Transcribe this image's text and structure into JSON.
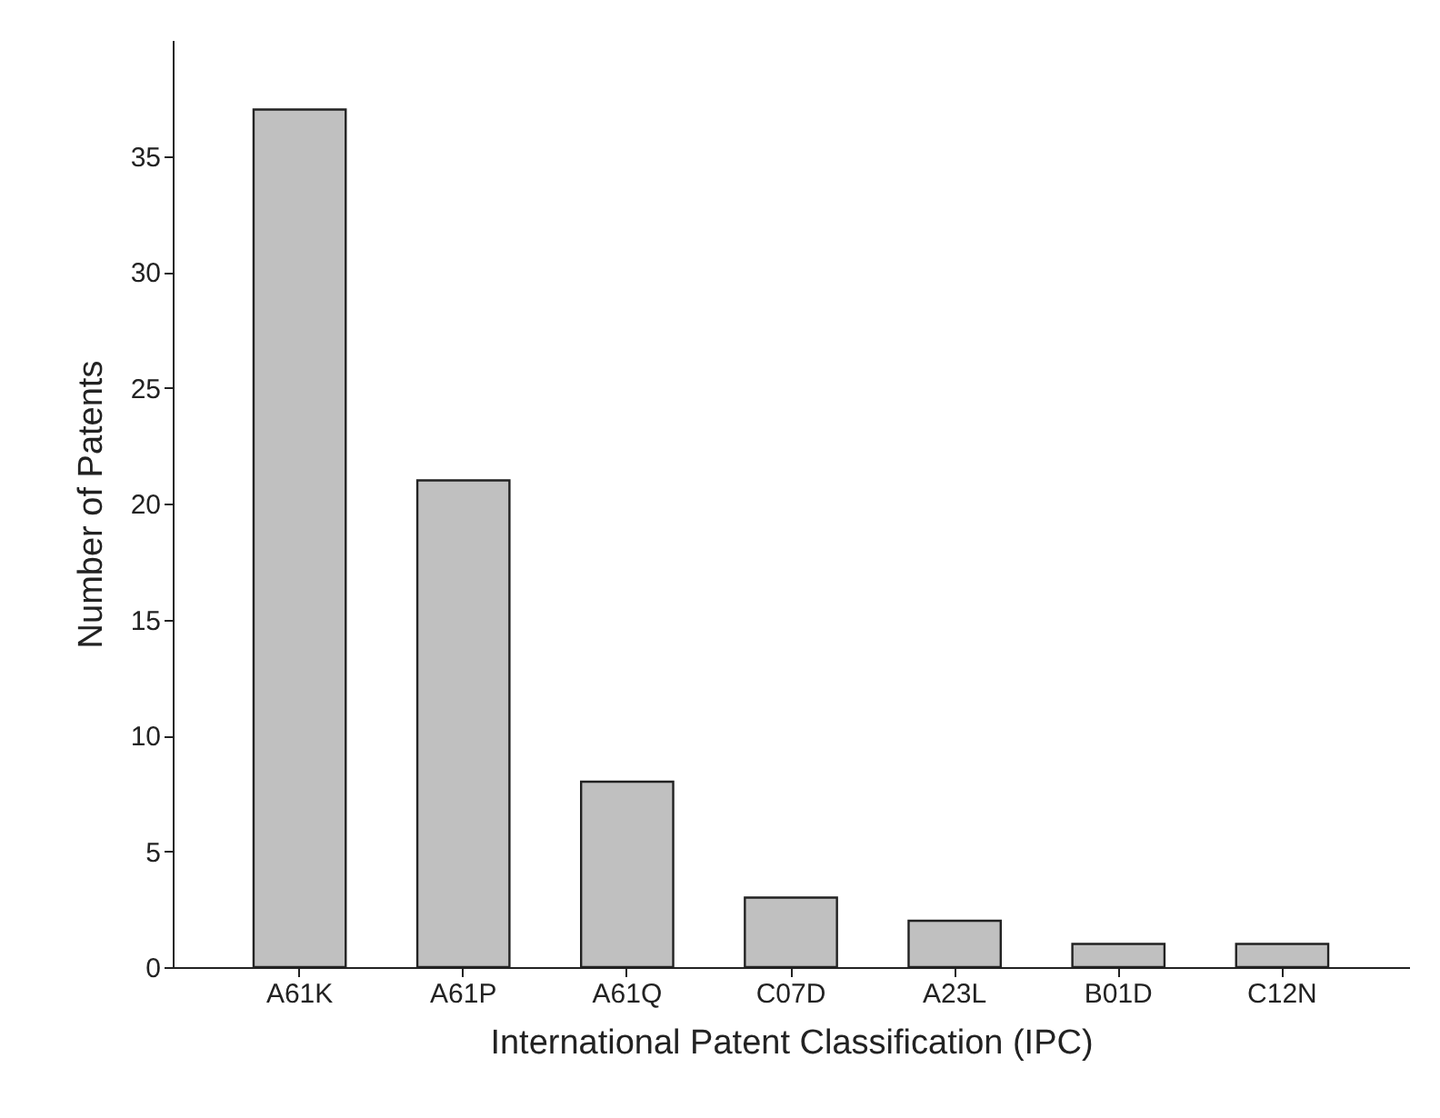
{
  "chart_data": {
    "type": "bar",
    "xlabel": "International Patent Classification (IPC)",
    "ylabel": "Number of Patents",
    "categories": [
      "A61K",
      "A61P",
      "A61Q",
      "C07D",
      "A23L",
      "B01D",
      "C12N"
    ],
    "values": [
      37,
      21,
      8,
      3,
      2,
      1,
      1
    ],
    "color": "#c0c0c0",
    "ylim": [
      0,
      40
    ],
    "yticks": [
      0,
      5,
      10,
      15,
      20,
      25,
      30,
      35
    ],
    "grid": false
  }
}
